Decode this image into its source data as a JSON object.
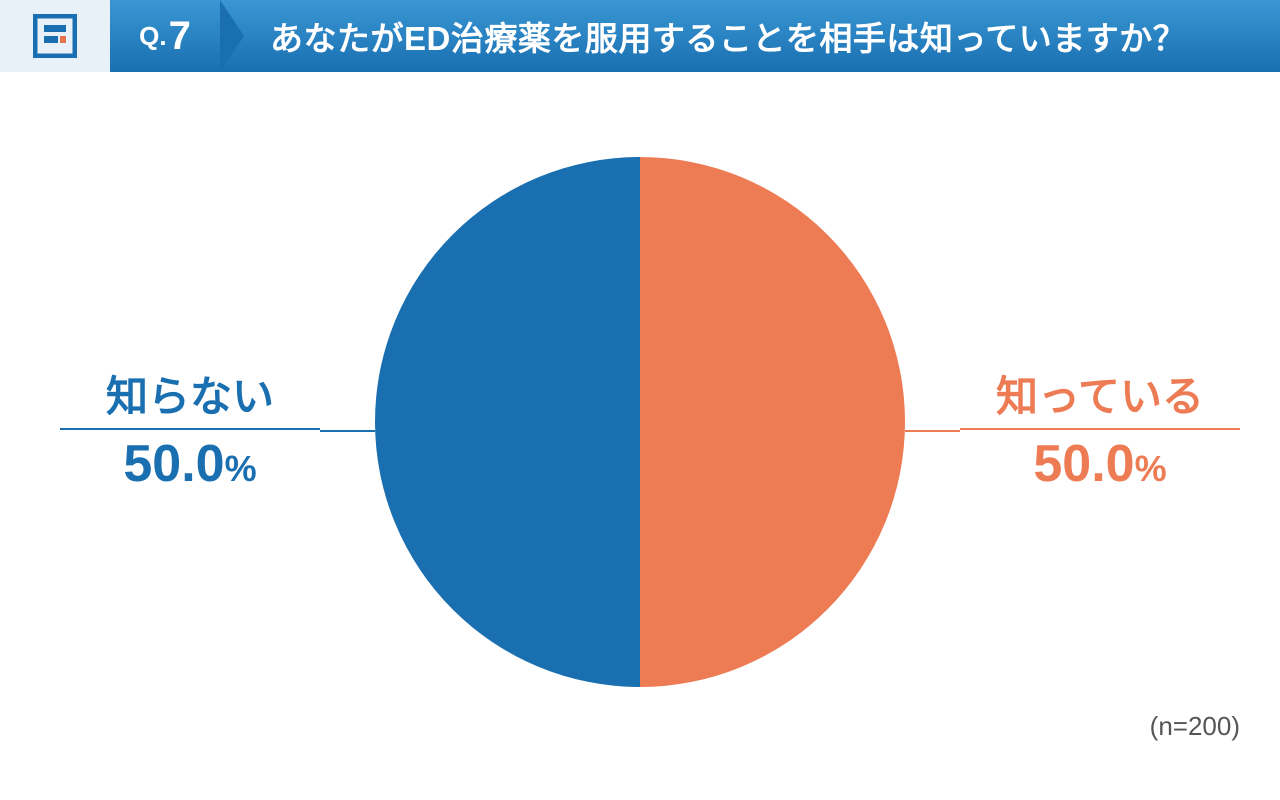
{
  "header": {
    "q_prefix": "Q.",
    "q_number": "7",
    "title": "あなたがED治療薬を服用することを相手は知っていますか？",
    "logo_blue": "#1a6fb0",
    "logo_accent": "#e8724b",
    "header_bg_light": "#e8f0f8",
    "header_gradient_top": "#3a97d4",
    "header_gradient_bottom": "#1a6fb0"
  },
  "chart": {
    "type": "pie",
    "radius": 265,
    "background_color": "#ffffff",
    "slices": [
      {
        "label": "知っている",
        "value": 50.0,
        "pct_text": "50.0",
        "pct_unit": "%",
        "color": "#ed7b54",
        "start_angle": 0,
        "end_angle": 180
      },
      {
        "label": "知らない",
        "value": 50.0,
        "pct_text": "50.0",
        "pct_unit": "%",
        "color": "#1a6fb0",
        "start_angle": 180,
        "end_angle": 360
      }
    ],
    "label_fontsize": 42,
    "pct_fontsize": 52,
    "pct_unit_fontsize": 36,
    "leader_color_right": "#ed7b54",
    "leader_color_left": "#1a6fb0"
  },
  "footnote": {
    "text": "(n=200)",
    "color": "#555555",
    "fontsize": 26
  }
}
